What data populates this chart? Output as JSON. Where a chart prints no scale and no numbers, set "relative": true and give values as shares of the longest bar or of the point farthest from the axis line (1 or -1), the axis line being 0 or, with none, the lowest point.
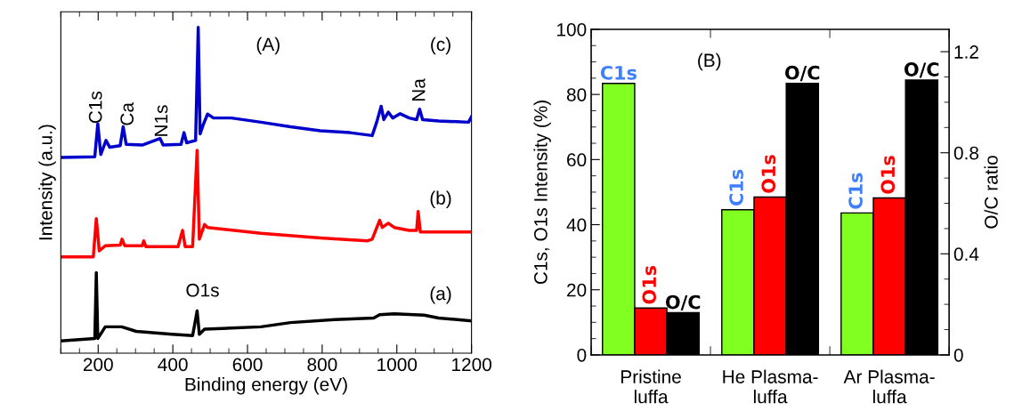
{
  "chart_data": [
    {
      "type": "line",
      "relative": true,
      "xlabel": "Binding energy (eV)",
      "ylabel": "Intensity (a.u.)",
      "xlim": [
        100,
        1200
      ],
      "xticks": [
        200,
        400,
        600,
        800,
        1000,
        1200
      ],
      "tick_labels": "x",
      "annotations": [
        "(A)",
        "(a)",
        "(b)",
        "(c)",
        "C1s",
        "Ca",
        "N1s",
        "O1s",
        "Na"
      ],
      "series": [
        {
          "color": "#000000",
          "x": [
            100,
            191,
            195,
            199,
            219,
            263,
            302,
            398,
            453,
            465,
            471,
            485,
            636,
            715,
            834,
            938,
            954,
            993,
            1073,
            1112,
            1200
          ],
          "values": [
            0.038,
            0.045,
            0.247,
            0.045,
            0.081,
            0.081,
            0.067,
            0.058,
            0.054,
            0.13,
            0.058,
            0.074,
            0.081,
            0.094,
            0.103,
            0.108,
            0.118,
            0.121,
            0.117,
            0.108,
            0.099
          ]
        },
        {
          "color": "#ff0000",
          "x": [
            100,
            187,
            195,
            203,
            219,
            259,
            264,
            271,
            318,
            322,
            328,
            414,
            426,
            433,
            453,
            465,
            471,
            485,
            493,
            636,
            795,
            922,
            934,
            954,
            961,
            977,
            993,
            1033,
            1053,
            1057,
            1063,
            1112,
            1200
          ],
          "values": [
            0.296,
            0.296,
            0.413,
            0.314,
            0.33,
            0.332,
            0.35,
            0.33,
            0.33,
            0.345,
            0.327,
            0.327,
            0.377,
            0.327,
            0.327,
            0.623,
            0.35,
            0.395,
            0.386,
            0.368,
            0.354,
            0.345,
            0.35,
            0.408,
            0.386,
            0.399,
            0.386,
            0.377,
            0.377,
            0.435,
            0.372,
            0.372,
            0.372
          ]
        },
        {
          "color": "#0000cc",
          "x": [
            100,
            191,
            199,
            207,
            221,
            231,
            259,
            267,
            275,
            318,
            366,
            374,
            422,
            430,
            437,
            461,
            468,
            473,
            481,
            493,
            509,
            557,
            636,
            715,
            795,
            874,
            934,
            946,
            958,
            965,
            977,
            989,
            1009,
            1033,
            1053,
            1061,
            1069,
            1112,
            1192,
            1200
          ],
          "values": [
            0.601,
            0.603,
            0.704,
            0.61,
            0.653,
            0.632,
            0.637,
            0.695,
            0.641,
            0.639,
            0.659,
            0.639,
            0.641,
            0.677,
            0.646,
            0.653,
            1,
            0.673,
            0.7,
            0.734,
            0.722,
            0.722,
            0.709,
            0.695,
            0.683,
            0.677,
            0.668,
            0.709,
            0.758,
            0.717,
            0.74,
            0.722,
            0.735,
            0.722,
            0.717,
            0.749,
            0.717,
            0.713,
            0.709,
            0.726
          ]
        }
      ]
    },
    {
      "type": "bar",
      "categories": [
        "Pristine\nluffa",
        "He Plasma-\nluffa",
        "Ar Plasma-\nluffa"
      ],
      "ylabel": "C1s, O1s Intensity (%)",
      "y2label": "O/C ratio",
      "ylim": [
        0,
        100
      ],
      "yticks": [
        0,
        20,
        40,
        60,
        80,
        100
      ],
      "y2lim": [
        0,
        1.2885
      ],
      "y2ticks": [
        0,
        0.4,
        0.8,
        1.2
      ],
      "annotations": [
        "(B)"
      ],
      "series": [
        {
          "name": "C1s",
          "color": "#80ff20",
          "values": [
            83.4,
            44.6,
            43.6
          ]
        },
        {
          "name": "O1s",
          "color": "#ff0000",
          "values": [
            14.4,
            48.5,
            48.2
          ]
        },
        {
          "name": "O/C",
          "color": "#000000",
          "axis": "y2",
          "values": [
            0.167,
            1.075,
            1.088
          ]
        }
      ]
    }
  ]
}
